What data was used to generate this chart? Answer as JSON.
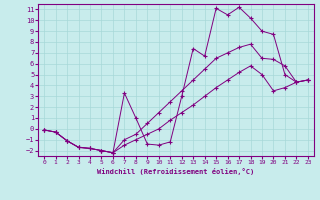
{
  "xlabel": "Windchill (Refroidissement éolien,°C)",
  "bg_color": "#c8ecec",
  "line_color": "#800080",
  "grid_color": "#a8d8d8",
  "xlim": [
    -0.5,
    23.5
  ],
  "ylim": [
    -2.5,
    11.5
  ],
  "xticks": [
    0,
    1,
    2,
    3,
    4,
    5,
    6,
    7,
    8,
    9,
    10,
    11,
    12,
    13,
    14,
    15,
    16,
    17,
    18,
    19,
    20,
    21,
    22,
    23
  ],
  "yticks": [
    -2,
    -1,
    0,
    1,
    2,
    3,
    4,
    5,
    6,
    7,
    8,
    9,
    10,
    11
  ],
  "line1_x": [
    0,
    1,
    2,
    3,
    4,
    5,
    6,
    7,
    8,
    9,
    10,
    11,
    12,
    13,
    14,
    15,
    16,
    17,
    18,
    19,
    20,
    21,
    22,
    23
  ],
  "line1_y": [
    -0.1,
    -0.3,
    -1.1,
    -1.7,
    -1.8,
    -2.0,
    -2.2,
    3.3,
    1.0,
    -1.4,
    -1.5,
    -1.2,
    3.0,
    7.4,
    6.7,
    11.1,
    10.5,
    11.2,
    10.2,
    9.0,
    8.7,
    5.0,
    4.3,
    4.5
  ],
  "line2_x": [
    0,
    1,
    2,
    3,
    4,
    5,
    6,
    7,
    8,
    9,
    10,
    11,
    12,
    13,
    14,
    15,
    16,
    17,
    18,
    19,
    20,
    21,
    22,
    23
  ],
  "line2_y": [
    -0.1,
    -0.3,
    -1.1,
    -1.7,
    -1.8,
    -2.0,
    -2.2,
    -1.0,
    -0.5,
    0.5,
    1.5,
    2.5,
    3.5,
    4.5,
    5.5,
    6.5,
    7.0,
    7.5,
    7.8,
    6.5,
    6.4,
    5.8,
    4.3,
    4.5
  ],
  "line3_x": [
    0,
    1,
    2,
    3,
    4,
    5,
    6,
    7,
    8,
    9,
    10,
    11,
    12,
    13,
    14,
    15,
    16,
    17,
    18,
    19,
    20,
    21,
    22,
    23
  ],
  "line3_y": [
    -0.1,
    -0.3,
    -1.1,
    -1.7,
    -1.8,
    -2.0,
    -2.2,
    -1.5,
    -1.0,
    -0.5,
    0.0,
    0.8,
    1.5,
    2.2,
    3.0,
    3.8,
    4.5,
    5.2,
    5.8,
    5.0,
    3.5,
    3.8,
    4.3,
    4.5
  ]
}
